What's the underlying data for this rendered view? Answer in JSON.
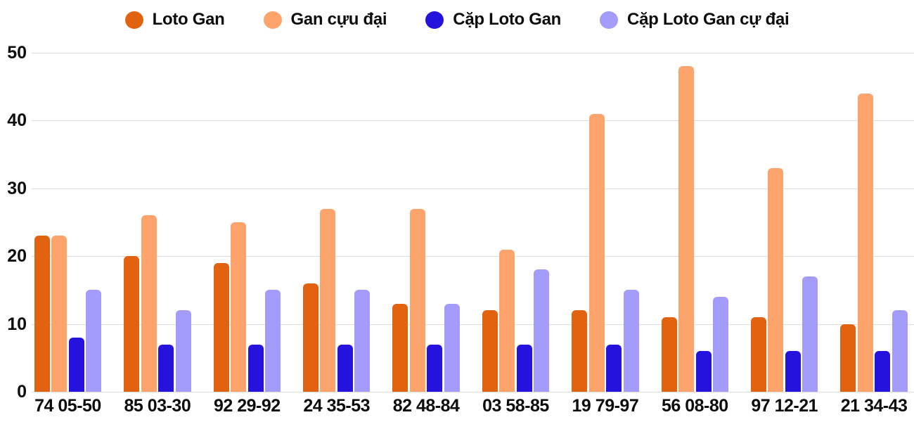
{
  "chart_data": {
    "type": "bar",
    "title": "",
    "categories": [
      "74 05-50",
      "85 03-30",
      "92 29-92",
      "24 35-53",
      "82 48-84",
      "03 58-85",
      "19 79-97",
      "56 08-80",
      "97 12-21",
      "21 34-43"
    ],
    "series": [
      {
        "name": "Loto Gan",
        "color": "#E2630F",
        "values": [
          23,
          20,
          19,
          16,
          13,
          12,
          12,
          11,
          11,
          10
        ]
      },
      {
        "name": "Gan cựu đại",
        "color": "#FCA46C",
        "values": [
          23,
          26,
          25,
          27,
          27,
          21,
          41,
          48,
          33,
          44
        ]
      },
      {
        "name": "Cặp Loto Gan",
        "color": "#2512DC",
        "values": [
          8,
          7,
          7,
          7,
          7,
          7,
          7,
          6,
          6,
          6
        ]
      },
      {
        "name": "Cặp Loto Gan cự đại",
        "color": "#A49CFB",
        "values": [
          15,
          12,
          15,
          15,
          13,
          18,
          15,
          14,
          17,
          12
        ]
      }
    ],
    "xlabel": "",
    "ylabel": "",
    "y_axis": {
      "min": 0,
      "max": 50,
      "ticks": [
        0,
        10,
        20,
        30,
        40,
        50
      ]
    },
    "grid": "horizontal-only",
    "legend_position": "top"
  },
  "colors": {
    "background": "#FFFFFF",
    "gridline": "#DCDCDC",
    "text": "#0D0D0D"
  }
}
